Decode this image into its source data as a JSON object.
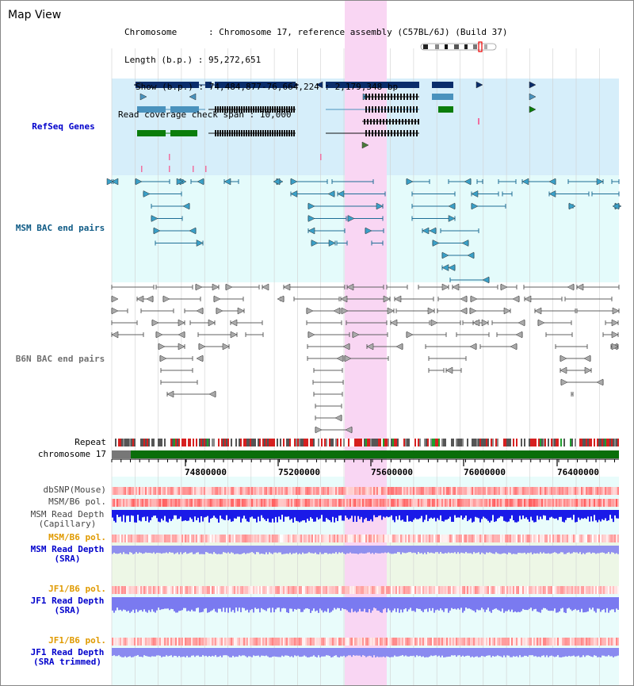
{
  "title": "Map View",
  "info": {
    "chromosome_key": "Chromosome",
    "chromosome_val": "Chromosome 17, reference assembly (C57BL/6J) (Build 37)",
    "length_key": "Length (b.p.)",
    "length_val": "95,272,651",
    "show_key": "Show (b.p.)",
    "show_val": "74,484,877-76,664,224 : 2,179,348 bp",
    "coverage_key": "Read coverage check span",
    "coverage_val": "10,000"
  },
  "tracks": {
    "refseq": "RefSeq Genes",
    "msm_bac": "MSM BAC end pairs",
    "b6n_bac": "B6N BAC end pairs",
    "repeat": "Repeat",
    "chromosome": "chromosome 17",
    "dbsnp": "dbSNP(Mouse)",
    "msm_pol": "MSM/B6 pol.",
    "msm_depth_cap_1": "MSM Read Depth",
    "msm_depth_cap_2": "(Capillary)",
    "msm_pol_2": "MSM/B6 pol.",
    "msm_depth_sra_1": "MSM Read Depth",
    "msm_depth_sra_2": "(SRA)",
    "jf1_pol": "JF1/B6 pol.",
    "jf1_depth_sra_1": "JF1 Read Depth",
    "jf1_depth_sra_2": "(SRA)",
    "jf1_pol_2": "JF1/B6 pol.",
    "jf1_depth_trim_1": "JF1 Read Depth",
    "jf1_depth_trim_2": "(SRA trimmed)"
  },
  "ruler": {
    "ticks": [
      "74800000",
      "75200000",
      "75600000",
      "76000000",
      "76400000"
    ]
  },
  "colors": {
    "refseq_bg": "#d6eefa",
    "msm_bg": "#e4fbfb",
    "highlight": "#f9d6f3",
    "dark_navy": "#0a2d6b",
    "steel_blue": "#4a92bd",
    "green": "#0b7d0b",
    "msm_line": "#1e6e96",
    "gray_line": "#606060",
    "orange_label": "#e09a00",
    "blue_label": "#0000cc",
    "teal_label": "#0e5a85",
    "gray_label": "#707070"
  }
}
